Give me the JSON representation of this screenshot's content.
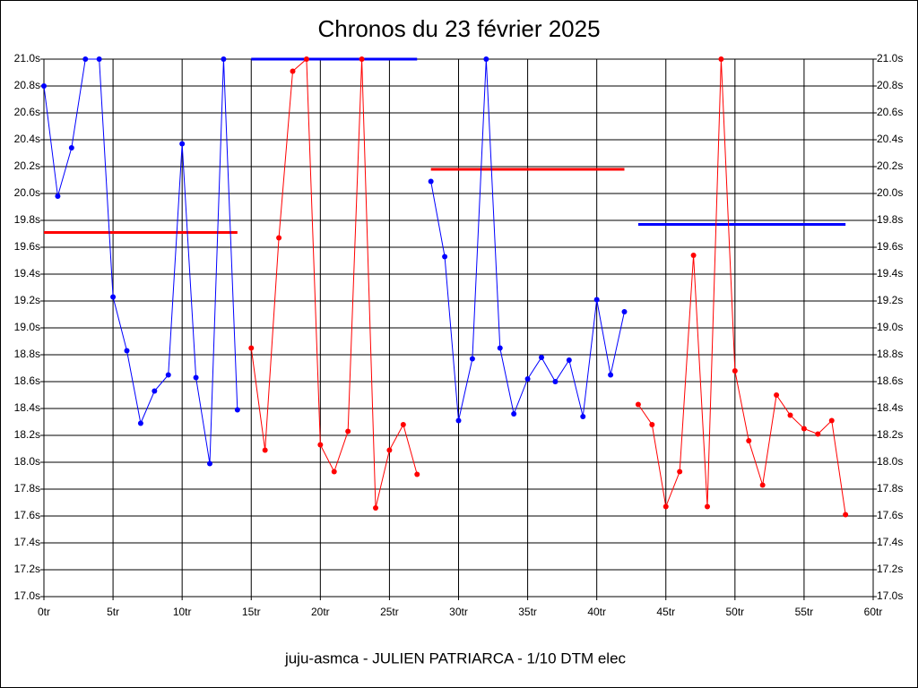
{
  "chart_data": {
    "type": "line",
    "title": "Chronos du 23 février 2025",
    "footer": "juju-asmca - JULIEN PATRIARCA - 1/10 DTM elec",
    "grid": true,
    "xlim": [
      0,
      60
    ],
    "ylim": [
      17.0,
      21.0
    ],
    "xticks": [
      {
        "value": 0,
        "label": "0tr"
      },
      {
        "value": 5,
        "label": "5tr"
      },
      {
        "value": 10,
        "label": "10tr"
      },
      {
        "value": 15,
        "label": "15tr"
      },
      {
        "value": 20,
        "label": "20tr"
      },
      {
        "value": 25,
        "label": "25tr"
      },
      {
        "value": 30,
        "label": "30tr"
      },
      {
        "value": 35,
        "label": "35tr"
      },
      {
        "value": 40,
        "label": "40tr"
      },
      {
        "value": 45,
        "label": "45tr"
      },
      {
        "value": 50,
        "label": "50tr"
      },
      {
        "value": 55,
        "label": "55tr"
      },
      {
        "value": 60,
        "label": "60tr"
      }
    ],
    "yticks": [
      {
        "value": 17.0,
        "label": "17.0s"
      },
      {
        "value": 17.2,
        "label": "17.2s"
      },
      {
        "value": 17.4,
        "label": "17.4s"
      },
      {
        "value": 17.6,
        "label": "17.6s"
      },
      {
        "value": 17.8,
        "label": "17.8s"
      },
      {
        "value": 18.0,
        "label": "18.0s"
      },
      {
        "value": 18.2,
        "label": "18.2s"
      },
      {
        "value": 18.4,
        "label": "18.4s"
      },
      {
        "value": 18.6,
        "label": "18.6s"
      },
      {
        "value": 18.8,
        "label": "18.8s"
      },
      {
        "value": 19.0,
        "label": "19.0s"
      },
      {
        "value": 19.2,
        "label": "19.2s"
      },
      {
        "value": 19.4,
        "label": "19.4s"
      },
      {
        "value": 19.6,
        "label": "19.6s"
      },
      {
        "value": 19.8,
        "label": "19.8s"
      },
      {
        "value": 20.0,
        "label": "20.0s"
      },
      {
        "value": 20.2,
        "label": "20.2s"
      },
      {
        "value": 20.4,
        "label": "20.4s"
      },
      {
        "value": 20.6,
        "label": "20.6s"
      },
      {
        "value": 20.8,
        "label": "20.8s"
      },
      {
        "value": 21.0,
        "label": "21.0s"
      }
    ],
    "series": [
      {
        "color": "#0000ff",
        "x": [
          0,
          1,
          2,
          3,
          4,
          5,
          6,
          7,
          8,
          9,
          10,
          11,
          12,
          13,
          14
        ],
        "values": [
          20.8,
          19.98,
          20.34,
          21.0,
          21.0,
          19.23,
          18.83,
          18.29,
          18.53,
          18.65,
          20.37,
          18.63,
          17.99,
          21.0,
          18.39
        ]
      },
      {
        "color": "#ff0000",
        "x": [
          15,
          16,
          17,
          18,
          19,
          20,
          21,
          22,
          23,
          24,
          25,
          26,
          27
        ],
        "values": [
          18.85,
          18.09,
          19.67,
          20.91,
          21.0,
          18.13,
          17.93,
          18.23,
          21.0,
          17.66,
          18.09,
          18.28,
          17.91
        ]
      },
      {
        "color": "#0000ff",
        "x": [
          28,
          29,
          30,
          31,
          32,
          33,
          34,
          35,
          36,
          37,
          38,
          39,
          40,
          41,
          42
        ],
        "values": [
          20.09,
          19.53,
          18.31,
          18.77,
          21.0,
          18.85,
          18.36,
          18.62,
          18.78,
          18.6,
          18.76,
          18.34,
          19.21,
          18.65,
          19.12
        ]
      },
      {
        "color": "#ff0000",
        "x": [
          43,
          44,
          45,
          46,
          47,
          48,
          49,
          50,
          51,
          52,
          53,
          54,
          55,
          56,
          57,
          58
        ],
        "values": [
          18.43,
          18.28,
          17.67,
          17.93,
          19.54,
          17.67,
          21.0,
          18.68,
          18.16,
          17.83,
          18.5,
          18.35,
          18.25,
          18.21,
          18.31,
          17.61
        ]
      }
    ],
    "reference_lines": [
      {
        "color": "#ff0000",
        "x": [
          0,
          14
        ],
        "value": 19.71
      },
      {
        "color": "#0000ff",
        "x": [
          15,
          27
        ],
        "value": 21.0
      },
      {
        "color": "#ff0000",
        "x": [
          28,
          42
        ],
        "value": 20.18
      },
      {
        "color": "#0000ff",
        "x": [
          43,
          58
        ],
        "value": 19.77
      }
    ]
  }
}
